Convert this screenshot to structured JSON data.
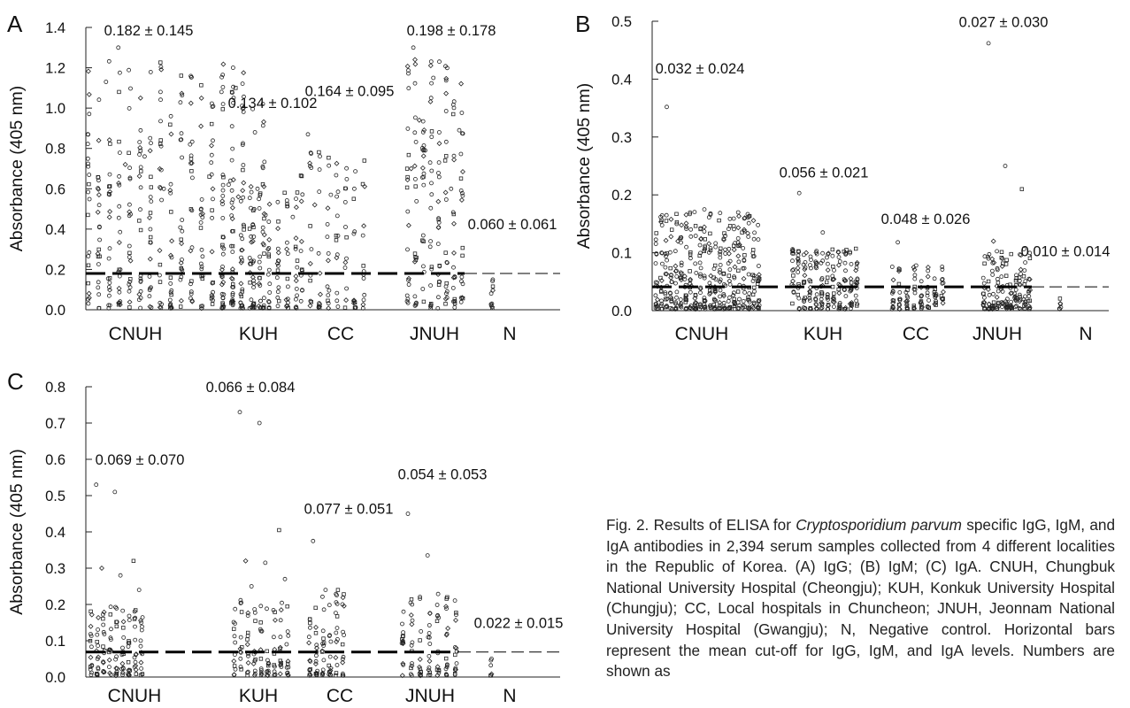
{
  "chart_data": [
    {
      "panel": "A",
      "type": "scatter",
      "ylabel": "Absorbance (405 nm)",
      "ylim": [
        0,
        1.4
      ],
      "yticks": [
        "0.0",
        "0.2",
        "0.4",
        "0.6",
        "0.8",
        "1.0",
        "1.2",
        "1.4"
      ],
      "cutoff": 0.18,
      "categories": [
        "CNUH",
        "KUH",
        "CC",
        "JNUH",
        "N"
      ],
      "groups": [
        {
          "name": "CNUH",
          "label": "0.182 ± 0.145",
          "label_y": 1.36,
          "columns": 18,
          "density": 22,
          "max": 1.3,
          "outliers": [
            1.13,
            0.96,
            1.1,
            0.72,
            0.82,
            0.88,
            0.76,
            0.66,
            0.57,
            0.6,
            0.62,
            1.3
          ]
        },
        {
          "name": "KUH",
          "label": "0.134 ± 0.102",
          "label_y": 1.0,
          "columns": 9,
          "density": 16,
          "max": 0.64,
          "outliers": [
            0.64,
            0.6,
            0.58,
            0.56,
            0.47,
            0.46
          ]
        },
        {
          "name": "CC",
          "label": "0.164 ± 0.095",
          "label_y": 1.06,
          "columns": 8,
          "density": 13,
          "max": 0.87,
          "outliers": [
            0.87,
            0.57,
            0.55,
            0.52
          ]
        },
        {
          "name": "JNUH",
          "label": "0.198 ± 0.178",
          "label_y": 1.36,
          "columns": 8,
          "density": 20,
          "max": 1.3,
          "outliers": [
            1.3,
            1.15,
            0.97,
            0.94,
            0.88,
            0.89,
            0.79,
            0.74,
            0.7,
            1.05,
            0.6
          ]
        },
        {
          "name": "N",
          "label": "0.060 ± 0.061",
          "label_y": 0.4,
          "columns": 1,
          "density": 10,
          "max": 0.16,
          "outliers": []
        }
      ]
    },
    {
      "panel": "B",
      "type": "scatter",
      "ylabel": "Absorbance (405 nm)",
      "ylim": [
        0,
        0.5
      ],
      "yticks": [
        "0.0",
        "0.1",
        "0.2",
        "0.3",
        "0.4",
        "0.5"
      ],
      "cutoff": 0.041,
      "categories": [
        "CNUH",
        "KUH",
        "CC",
        "JNUH",
        "N"
      ],
      "groups": [
        {
          "name": "CNUH",
          "label": "0.032 ± 0.024",
          "label_y": 0.41,
          "columns": 22,
          "density": 18,
          "max": 0.18,
          "outliers": [
            0.352,
            0.175,
            0.135,
            0.12,
            0.11
          ]
        },
        {
          "name": "KUH",
          "label": "0.056 ± 0.021",
          "label_y": 0.23,
          "columns": 12,
          "density": 16,
          "max": 0.11,
          "outliers": [
            0.203,
            0.135,
            0.105,
            0.1
          ]
        },
        {
          "name": "CC",
          "label": "0.048 ± 0.026",
          "label_y": 0.15,
          "columns": 8,
          "density": 12,
          "max": 0.08,
          "outliers": [
            0.118,
            0.078
          ]
        },
        {
          "name": "JNUH",
          "label": "0.027 ± 0.030",
          "label_y": 0.49,
          "columns": 11,
          "density": 14,
          "max": 0.11,
          "outliers": [
            0.462,
            0.25,
            0.21,
            0.12
          ]
        },
        {
          "name": "N",
          "label": "0.010 ± 0.014",
          "label_y": 0.094,
          "columns": 1,
          "density": 6,
          "max": 0.03,
          "outliers": []
        }
      ]
    },
    {
      "panel": "C",
      "type": "scatter",
      "ylabel": "Absorbance (405 nm)",
      "ylim": [
        0,
        0.8
      ],
      "yticks": [
        "0.0",
        "0.1",
        "0.2",
        "0.3",
        "0.4",
        "0.5",
        "0.6",
        "0.7",
        "0.8"
      ],
      "cutoff": 0.069,
      "categories": [
        "CNUH",
        "KUH",
        "CC",
        "JNUH",
        "N"
      ],
      "groups": [
        {
          "name": "CNUH",
          "label": "0.069 ± 0.070",
          "label_y": 0.585,
          "columns": 9,
          "density": 14,
          "max": 0.2,
          "outliers": [
            0.53,
            0.51,
            0.32,
            0.3,
            0.28,
            0.24
          ]
        },
        {
          "name": "KUH",
          "label": "0.066 ± 0.084",
          "label_y": 0.785,
          "columns": 9,
          "density": 12,
          "max": 0.22,
          "outliers": [
            0.73,
            0.7,
            0.405,
            0.32,
            0.315,
            0.27,
            0.25
          ]
        },
        {
          "name": "CC",
          "label": "0.077 ± 0.051",
          "label_y": 0.45,
          "columns": 6,
          "density": 14,
          "max": 0.24,
          "outliers": [
            0.375,
            0.24,
            0.24,
            0.08
          ]
        },
        {
          "name": "JNUH",
          "label": "0.054 ± 0.053",
          "label_y": 0.545,
          "columns": 7,
          "density": 14,
          "max": 0.24,
          "outliers": [
            0.45,
            0.335,
            0.22
          ]
        },
        {
          "name": "N",
          "label": "0.022 ± 0.015",
          "label_y": 0.135,
          "columns": 1,
          "density": 6,
          "max": 0.06,
          "outliers": []
        }
      ]
    }
  ],
  "caption": {
    "fig_label": "Fig. 2.",
    "text_before_italic": "Results of ELISA for",
    "italic": "Cryptosporidium parvum",
    "text_after_italic": "specific IgG, IgM, and IgA antibodies in 2,394 serum samples collected from 4 different localities in the Republic of Korea. (A) IgG; (B) IgM; (C) IgA. CNUH, Chungbuk National University Hospital (Cheongju); KUH, Konkuk University Hospital (Chungju); CC, Local hospitals in Chuncheon; JNUH, Jeonnam National University Hospital (Gwangju); N, Negative control. Horizontal bars represent the mean cut-off for IgG, IgM, and IgA levels. Numbers are shown as"
  }
}
